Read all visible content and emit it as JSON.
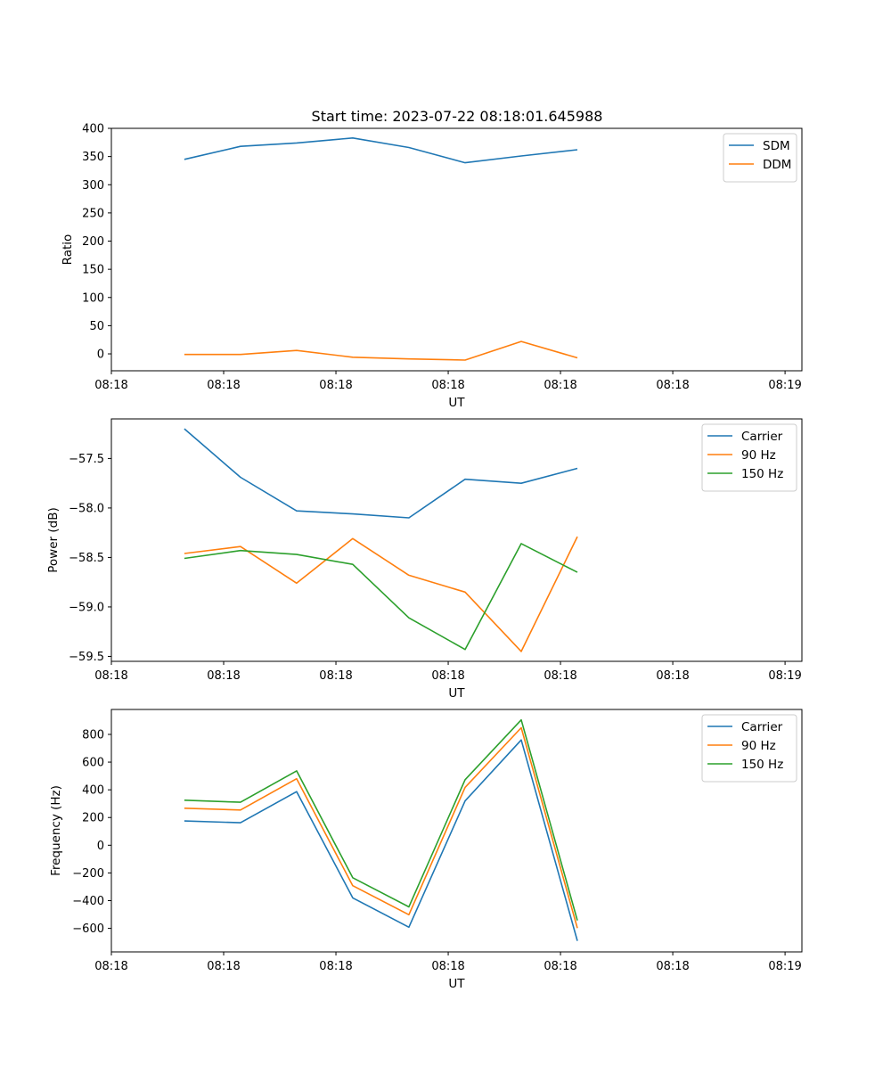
{
  "figure": {
    "title": "Start time: 2023-07-22 08:18:01.645988"
  },
  "chart_data": [
    {
      "type": "line",
      "title": "Start time: 2023-07-22 08:18:01.645988",
      "xlabel": "UT",
      "ylabel": "Ratio",
      "x_ticks": [
        "08:18",
        "08:18",
        "08:18",
        "08:18",
        "08:18",
        "08:18",
        "08:19"
      ],
      "x": [
        1.3,
        2.3,
        3.3,
        4.3,
        5.3,
        6.3,
        7.3,
        8.3
      ],
      "xlim": [
        0,
        12.3
      ],
      "x_tick_positions": [
        0,
        2,
        4,
        6,
        8,
        10,
        12
      ],
      "ylim": [
        -30,
        400
      ],
      "y_ticks": [
        0,
        50,
        100,
        150,
        200,
        250,
        300,
        350,
        400
      ],
      "legend": "top-right",
      "series": [
        {
          "name": "SDM",
          "color": "#1f77b4",
          "values": [
            345,
            368,
            374,
            383,
            366,
            339,
            351,
            362
          ]
        },
        {
          "name": "DDM",
          "color": "#ff7f0e",
          "values": [
            -1,
            -1,
            6,
            -6,
            -9,
            -11,
            22,
            -7
          ]
        }
      ]
    },
    {
      "type": "line",
      "xlabel": "UT",
      "ylabel": "Power (dB)",
      "x_ticks": [
        "08:18",
        "08:18",
        "08:18",
        "08:18",
        "08:18",
        "08:18",
        "08:19"
      ],
      "x": [
        1.3,
        2.3,
        3.3,
        4.3,
        5.3,
        6.3,
        7.3,
        8.3
      ],
      "xlim": [
        0,
        12.3
      ],
      "x_tick_positions": [
        0,
        2,
        4,
        6,
        8,
        10,
        12
      ],
      "ylim": [
        -59.55,
        -57.1
      ],
      "y_ticks": [
        -59.5,
        -59.0,
        -58.5,
        -58.0,
        -57.5
      ],
      "y_tick_labels": [
        "−59.5",
        "−59.0",
        "−58.5",
        "−58.0",
        "−57.5"
      ],
      "legend": "top-right",
      "series": [
        {
          "name": "Carrier",
          "color": "#1f77b4",
          "values": [
            -57.2,
            -57.69,
            -58.03,
            -58.06,
            -58.1,
            -57.71,
            -57.75,
            -57.6
          ]
        },
        {
          "name": "90 Hz",
          "color": "#ff7f0e",
          "values": [
            -58.46,
            -58.39,
            -58.76,
            -58.31,
            -58.68,
            -58.85,
            -59.45,
            -58.29
          ]
        },
        {
          "name": "150 Hz",
          "color": "#2ca02c",
          "values": [
            -58.51,
            -58.43,
            -58.47,
            -58.57,
            -59.11,
            -59.43,
            -58.36,
            -58.65
          ]
        }
      ]
    },
    {
      "type": "line",
      "xlabel": "UT",
      "ylabel": "Frequency (Hz)",
      "x_ticks": [
        "08:18",
        "08:18",
        "08:18",
        "08:18",
        "08:18",
        "08:18",
        "08:19"
      ],
      "x": [
        1.3,
        2.3,
        3.3,
        4.3,
        5.3,
        6.3,
        7.3,
        8.3
      ],
      "xlim": [
        0,
        12.3
      ],
      "x_tick_positions": [
        0,
        2,
        4,
        6,
        8,
        10,
        12
      ],
      "ylim": [
        -770,
        980
      ],
      "y_ticks": [
        -600,
        -400,
        -200,
        0,
        200,
        400,
        600,
        800
      ],
      "y_tick_labels": [
        "−600",
        "−400",
        "−200",
        "0",
        "200",
        "400",
        "600",
        "800"
      ],
      "legend": "top-right",
      "series": [
        {
          "name": "Carrier",
          "color": "#1f77b4",
          "values": [
            175,
            162,
            387,
            -380,
            -592,
            320,
            760,
            -690
          ]
        },
        {
          "name": "90 Hz",
          "color": "#ff7f0e",
          "values": [
            267,
            254,
            480,
            -292,
            -502,
            418,
            848,
            -598
          ]
        },
        {
          "name": "150 Hz",
          "color": "#2ca02c",
          "values": [
            325,
            310,
            537,
            -235,
            -445,
            473,
            905,
            -543
          ]
        }
      ]
    }
  ]
}
